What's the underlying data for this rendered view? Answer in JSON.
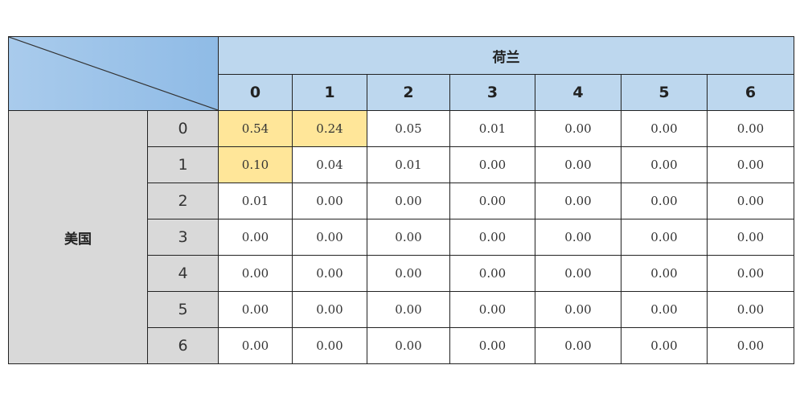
{
  "chart_data": {
    "type": "table",
    "column_group_label": "荷兰",
    "row_group_label": "美国",
    "columns": [
      "0",
      "1",
      "2",
      "3",
      "4",
      "5",
      "6"
    ],
    "rows": [
      "0",
      "1",
      "2",
      "3",
      "4",
      "5",
      "6"
    ],
    "values": [
      [
        "0.54",
        "0.24",
        "0.05",
        "0.01",
        "0.00",
        "0.00",
        "0.00"
      ],
      [
        "0.10",
        "0.04",
        "0.01",
        "0.00",
        "0.00",
        "0.00",
        "0.00"
      ],
      [
        "0.01",
        "0.00",
        "0.00",
        "0.00",
        "0.00",
        "0.00",
        "0.00"
      ],
      [
        "0.00",
        "0.00",
        "0.00",
        "0.00",
        "0.00",
        "0.00",
        "0.00"
      ],
      [
        "0.00",
        "0.00",
        "0.00",
        "0.00",
        "0.00",
        "0.00",
        "0.00"
      ],
      [
        "0.00",
        "0.00",
        "0.00",
        "0.00",
        "0.00",
        "0.00",
        "0.00"
      ],
      [
        "0.00",
        "0.00",
        "0.00",
        "0.00",
        "0.00",
        "0.00",
        "0.00"
      ]
    ],
    "highlighted_cells": [
      [
        0,
        0
      ],
      [
        0,
        1
      ],
      [
        1,
        0
      ]
    ],
    "colors": {
      "header": "#bdd7ee",
      "row_header": "#d9d9d9",
      "highlight": "#ffe699"
    }
  }
}
